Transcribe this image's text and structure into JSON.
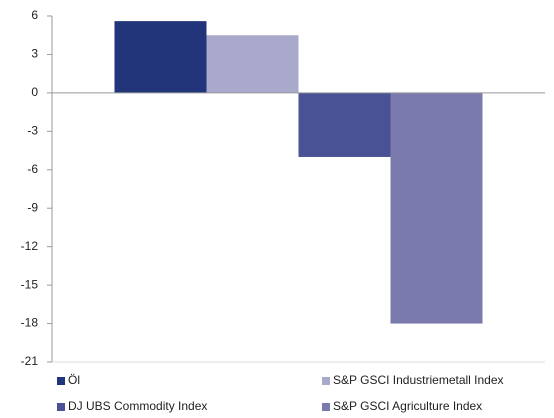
{
  "chart_data": {
    "type": "bar",
    "categories": [
      null
    ],
    "series": [
      {
        "name": "Öl",
        "color": "#22357a",
        "values": [
          5.6
        ]
      },
      {
        "name": "S&P GSCI Industriemetall Index",
        "color": "#a9a9cc",
        "values": [
          4.5
        ]
      },
      {
        "name": "DJ UBS Commodity Index",
        "color": "#4a5296",
        "values": [
          -5.0
        ]
      },
      {
        "name": "S&P GSCI Agriculture Index",
        "color": "#7a7aae",
        "values": [
          -18.0
        ]
      }
    ],
    "ylim": [
      -21,
      6
    ],
    "yticks": [
      -21,
      -18,
      -15,
      -12,
      -9,
      -6,
      -3,
      0,
      3,
      6
    ],
    "grid": false,
    "legend": "bottom"
  }
}
